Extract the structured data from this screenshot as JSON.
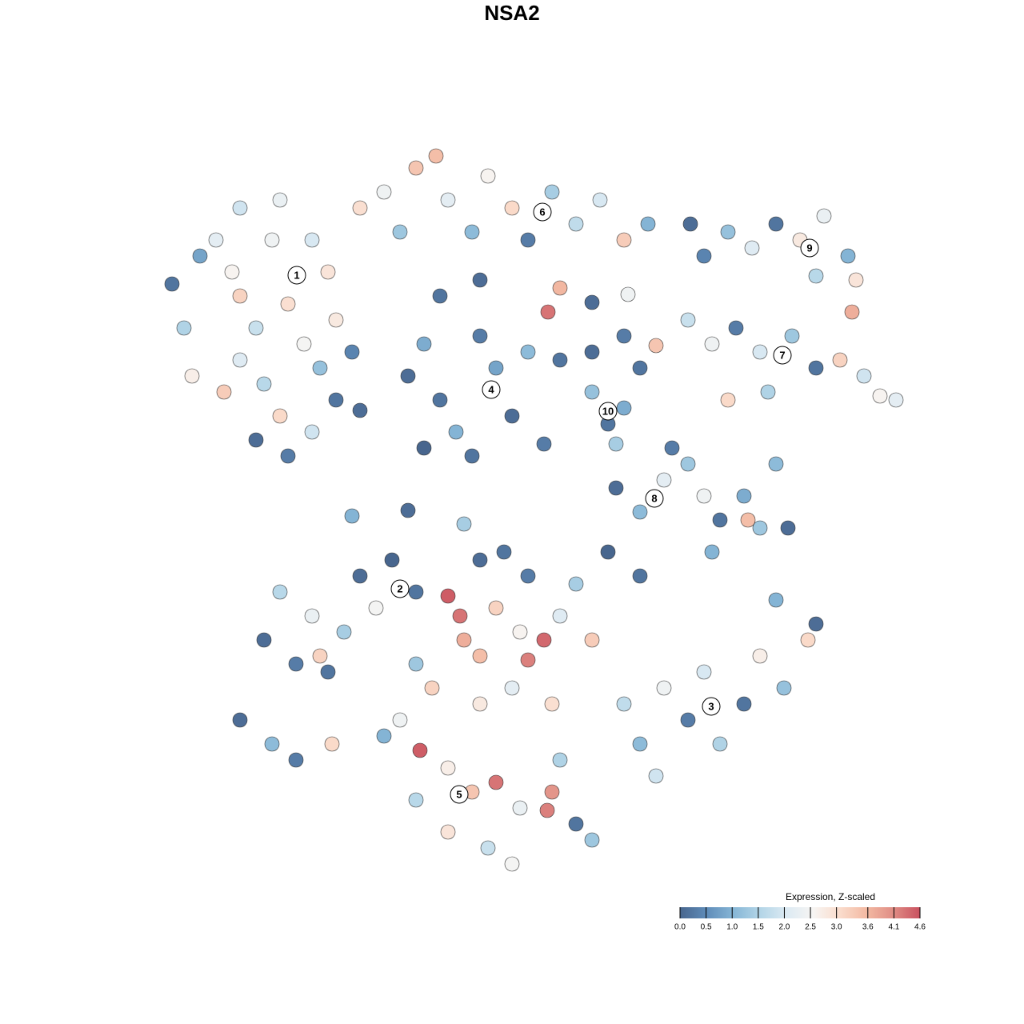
{
  "chart_data": {
    "type": "scatter",
    "title": "NSA2",
    "colorbar_title": "Expression, Z-scaled",
    "xlim": [
      0,
      1280
    ],
    "ylim": [
      1280,
      0
    ],
    "clim": [
      0,
      4.6
    ],
    "colormap": [
      "#48668e",
      "#5f8cb9",
      "#86b6d6",
      "#b3d5e7",
      "#dceaf3",
      "#f7f5f3",
      "#fadccc",
      "#f3b9a2",
      "#e08d85",
      "#c9515f"
    ],
    "cticks": [
      {
        "value": 0,
        "label": "0.0"
      },
      0.5,
      {
        "value": 1,
        "label": "1.0"
      },
      1.5,
      {
        "value": 2,
        "label": "2.0"
      },
      2.5,
      {
        "value": 3,
        "label": "3.0"
      },
      3.6,
      4.1,
      4.6
    ],
    "x": [
      215,
      230,
      250,
      270,
      290,
      300,
      320,
      340,
      360,
      380,
      400,
      420,
      300,
      330,
      350,
      320,
      360,
      390,
      240,
      280,
      420,
      300,
      350,
      390,
      410,
      440,
      450,
      480,
      500,
      520,
      545,
      560,
      590,
      610,
      640,
      660,
      690,
      720,
      750,
      780,
      810,
      700,
      685,
      600,
      550,
      880,
      910,
      940,
      970,
      1000,
      1030,
      1060,
      1070,
      1065,
      1020,
      860,
      890,
      920,
      950,
      990,
      1020,
      1050,
      1080,
      1100,
      1120,
      820,
      910,
      960,
      510,
      530,
      550,
      570,
      600,
      620,
      640,
      660,
      590,
      530,
      700,
      740,
      780,
      800,
      740,
      760,
      780,
      770,
      770,
      800,
      830,
      840,
      860,
      880,
      900,
      930,
      950,
      970,
      935,
      890,
      985,
      330,
      350,
      370,
      390,
      410,
      430,
      450,
      470,
      490,
      520,
      400,
      300,
      340,
      370,
      415,
      780,
      800,
      830,
      860,
      880,
      900,
      930,
      950,
      980,
      1010,
      1020,
      970,
      820,
      560,
      575,
      580,
      600,
      620,
      650,
      680,
      660,
      700,
      720,
      740,
      540,
      520,
      600,
      640,
      690,
      500,
      525,
      560,
      590,
      620,
      650,
      684,
      700,
      720,
      610,
      560,
      520,
      640,
      740,
      690,
      600,
      630,
      660,
      760,
      800,
      480,
      440,
      510,
      580,
      863,
      740,
      785,
      450,
      680
    ],
    "y": [
      355,
      410,
      320,
      300,
      340,
      370,
      410,
      300,
      380,
      430,
      460,
      400,
      450,
      480,
      520,
      550,
      570,
      540,
      470,
      490,
      500,
      260,
      250,
      300,
      340,
      440,
      260,
      240,
      290,
      210,
      195,
      250,
      290,
      220,
      260,
      300,
      240,
      280,
      250,
      300,
      280,
      360,
      390,
      350,
      370,
      320,
      290,
      310,
      280,
      300,
      270,
      320,
      350,
      390,
      345,
      400,
      430,
      410,
      440,
      420,
      460,
      450,
      470,
      495,
      500,
      432,
      500,
      490,
      470,
      430,
      500,
      540,
      420,
      460,
      520,
      440,
      570,
      560,
      450,
      440,
      420,
      460,
      490,
      530,
      510,
      555,
      610,
      640,
      600,
      560,
      580,
      620,
      650,
      620,
      660,
      580,
      650,
      690,
      660,
      800,
      740,
      830,
      770,
      840,
      790,
      720,
      760,
      700,
      740,
      820,
      900,
      930,
      950,
      930,
      880,
      930,
      860,
      900,
      840,
      930,
      880,
      820,
      860,
      800,
      780,
      750,
      970,
      745,
      770,
      800,
      820,
      760,
      790,
      800,
      825,
      770,
      730,
      800,
      860,
      830,
      880,
      860,
      880,
      900,
      938,
      960,
      990,
      978,
      1010,
      1013,
      950,
      1030,
      1060,
      1040,
      1000,
      1080,
      1050,
      990,
      700,
      690,
      720,
      690,
      720,
      920,
      645,
      638,
      655,
      280,
      378,
      368,
      513,
      555
    ],
    "values": [
      0.2,
      1.5,
      0.8,
      2.2,
      2.6,
      3.2,
      1.8,
      2.4,
      3.0,
      2.5,
      1.2,
      2.8,
      2.1,
      1.6,
      3.1,
      0.1,
      0.3,
      1.9,
      2.7,
      3.3,
      0.2,
      1.9,
      2.3,
      2.0,
      2.9,
      0.4,
      3.0,
      2.4,
      1.3,
      3.4,
      3.5,
      2.2,
      1.1,
      2.6,
      3.1,
      0.3,
      1.4,
      1.7,
      2.0,
      3.3,
      1.0,
      3.6,
      4.3,
      0.1,
      0.2,
      0.4,
      1.2,
      2.1,
      0.2,
      2.8,
      2.3,
      1.0,
      2.9,
      3.7,
      1.6,
      1.8,
      2.4,
      0.3,
      2.0,
      1.3,
      0.2,
      3.2,
      1.9,
      2.6,
      2.2,
      3.4,
      3.1,
      1.5,
      0.1,
      0.9,
      0.2,
      1.0,
      0.3,
      0.8,
      0.1,
      1.1,
      0.2,
      0.0,
      0.2,
      0.1,
      0.3,
      0.2,
      1.2,
      0.2,
      0.9,
      1.4,
      0.1,
      1.1,
      2.2,
      0.3,
      1.3,
      2.4,
      0.2,
      0.9,
      1.3,
      1.1,
      3.5,
      1.0,
      0.1,
      0.1,
      1.6,
      0.3,
      2.3,
      0.2,
      1.4,
      0.1,
      2.5,
      0.0,
      0.2,
      3.2,
      0.1,
      1.1,
      0.3,
      3.1,
      1.7,
      1.1,
      2.4,
      0.3,
      2.0,
      1.5,
      0.2,
      2.7,
      1.2,
      3.1,
      0.1,
      1.0,
      1.9,
      4.5,
      4.3,
      3.7,
      3.5,
      3.2,
      2.6,
      4.4,
      4.2,
      2.1,
      1.4,
      3.3,
      3.2,
      1.3,
      2.8,
      2.2,
      3.0,
      2.4,
      4.5,
      2.7,
      3.4,
      4.3,
      2.3,
      4.2,
      1.5,
      0.2,
      1.8,
      2.9,
      1.6,
      2.5,
      1.3,
      4.0,
      0.1,
      0.2,
      0.3,
      0.0,
      0.2,
      1.0,
      1.0,
      0.1,
      1.4,
      0.1,
      0.1,
      2.4,
      0.1,
      0.3
    ],
    "annotations": [
      {
        "text": "1",
        "x": 371,
        "y": 344
      },
      {
        "text": "2",
        "x": 500,
        "y": 736
      },
      {
        "text": "3",
        "x": 889,
        "y": 883
      },
      {
        "text": "4",
        "x": 614,
        "y": 487
      },
      {
        "text": "5",
        "x": 574,
        "y": 993
      },
      {
        "text": "6",
        "x": 678,
        "y": 265
      },
      {
        "text": "7",
        "x": 978,
        "y": 444
      },
      {
        "text": "8",
        "x": 818,
        "y": 623
      },
      {
        "text": "9",
        "x": 1012,
        "y": 310
      },
      {
        "text": "10",
        "x": 760,
        "y": 514
      }
    ]
  }
}
